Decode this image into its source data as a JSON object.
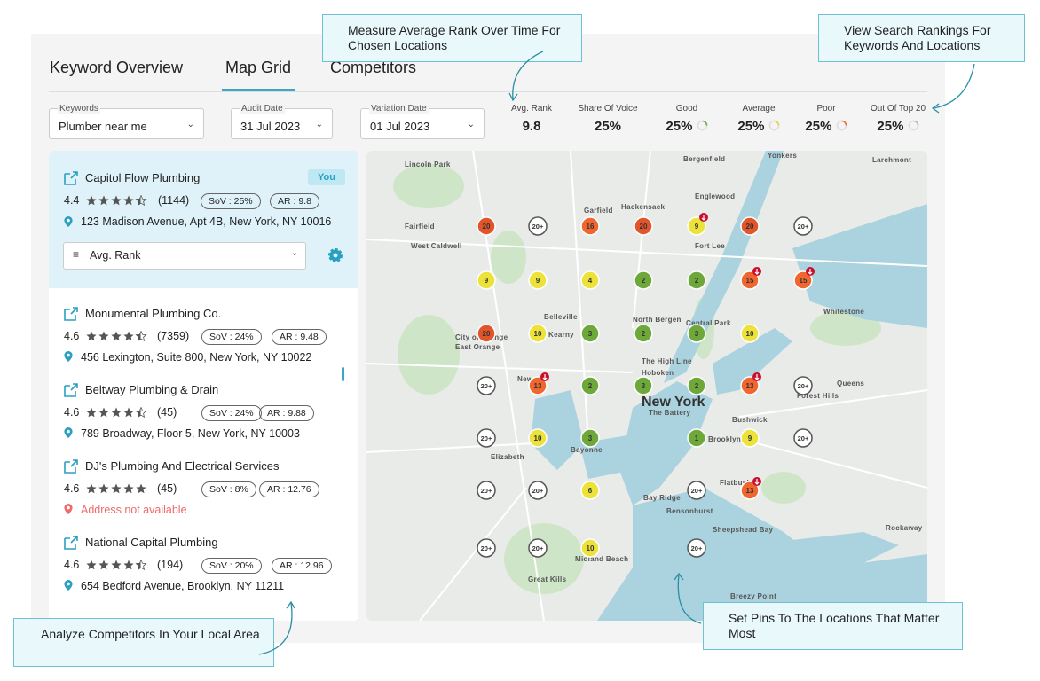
{
  "tabs": [
    "Keyword Overview",
    "Map Grid",
    "Competitors"
  ],
  "filters": [
    {
      "label": "Keywords",
      "value": "Plumber near me"
    },
    {
      "label": "Audit Date",
      "value": "31 Jul 2023"
    },
    {
      "label": "Variation Date",
      "value": "01 Jul 2023"
    }
  ],
  "metrics": [
    {
      "label": "Avg. Rank",
      "value": "9.8"
    },
    {
      "label": "Share Of Voice",
      "value": "25%"
    },
    {
      "label": "Good",
      "value": "25%"
    },
    {
      "label": "Average",
      "value": "25%"
    },
    {
      "label": "Poor",
      "value": "25%"
    },
    {
      "label": "Out Of Top 20",
      "value": "25%"
    }
  ],
  "selected": {
    "name": "Capitol Flow Plumbing",
    "badge": "You",
    "rating": "4.4",
    "reviews": "(1144)",
    "sov": "SoV : 25%",
    "ar": "AR : 9.8",
    "address": "123 Madison Avenue, Apt 4B, New York, NY 10016",
    "sort": "Avg. Rank"
  },
  "competitors": [
    {
      "name": "Monumental Plumbing Co.",
      "rating": "4.6",
      "reviews": "(7359)",
      "sov": "SoV : 24%",
      "ar": "AR : 9.48",
      "address": "456 Lexington, Suite 800, New York, NY 10022"
    },
    {
      "name": "Beltway Plumbing & Drain",
      "rating": "4.6",
      "reviews": "(45)",
      "sov": "SoV : 24%",
      "ar": "AR : 9.88",
      "address": "789 Broadway, Floor 5, New York, NY 10003"
    },
    {
      "name": "DJ's Plumbing And Electrical Services",
      "rating": "4.6",
      "reviews": "(45)",
      "sov": "SoV : 8%",
      "ar": "AR : 12.76",
      "address": "Address not available"
    },
    {
      "name": "National Capital Plumbing",
      "rating": "4.6",
      "reviews": "(194)",
      "sov": "SoV : 20%",
      "ar": "AR : 12.96",
      "address": "654 Bedford Avenue, Brooklyn, NY 11211"
    }
  ],
  "grid": [
    [
      20,
      "20+",
      16,
      20,
      9,
      20,
      "20+"
    ],
    [
      9,
      9,
      4,
      2,
      2,
      15,
      15
    ],
    [
      20,
      10,
      3,
      2,
      3,
      10,
      null
    ],
    [
      "20+",
      13,
      2,
      3,
      2,
      13,
      "20+"
    ],
    [
      "20+",
      10,
      3,
      null,
      1,
      9,
      "20+"
    ],
    [
      "20+",
      "20+",
      6,
      null,
      "20+",
      13,
      null
    ],
    [
      "20+",
      "20+",
      10,
      null,
      "20+",
      null,
      null
    ]
  ],
  "map_labels": [
    "Yonkers",
    "Bergenfield",
    "Lincoln Park",
    "Garfield",
    "Hackensack",
    "Englewood",
    "Fort Lee",
    "Fairfield",
    "West Caldwell",
    "Belleville",
    "North Bergen",
    "Kearny",
    "City of Orange",
    "East Orange",
    "Newark",
    "Hoboken",
    "New York",
    "The Battery",
    "Elizabeth",
    "Bayonne",
    "Brooklyn",
    "Queens",
    "Whitestone",
    "Flatbush",
    "Bensonhurst",
    "Bay Ridge",
    "Sheepshead Bay",
    "Midland Beach",
    "Great Kills",
    "Breezy Point",
    "Rockaway",
    "Larchmont",
    "Bushwick",
    "Forest Hills",
    "Central Park",
    "The High Line"
  ],
  "callouts": [
    "Measure Average Rank Over Time For Chosen Locations",
    "View Search Rankings For Keywords And Locations",
    "Analyze Competitors In Your Local Area",
    "Set Pins To The Locations That Matter Most"
  ]
}
